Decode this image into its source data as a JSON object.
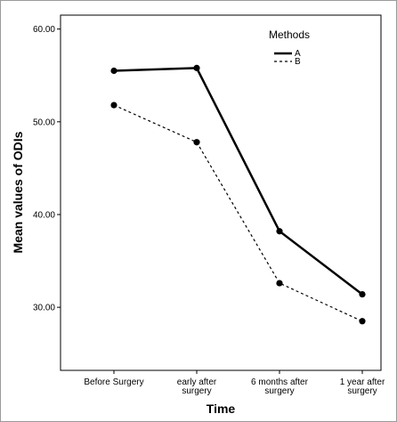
{
  "chart_data": {
    "type": "line",
    "categories": [
      [
        "Before Surgery"
      ],
      [
        "early after",
        "surgery"
      ],
      [
        "6 months after",
        "surgery"
      ],
      [
        "1 year after",
        "surgery"
      ]
    ],
    "series": [
      {
        "name": "A",
        "values": [
          55.5,
          55.8,
          38.2,
          31.4
        ],
        "style": "solid",
        "color": "#000000"
      },
      {
        "name": "B",
        "values": [
          51.8,
          47.8,
          32.6,
          28.5
        ],
        "style": "dashed",
        "color": "#000000"
      }
    ],
    "xlabel": "Time",
    "ylabel": "Mean values of ODIs",
    "ylim": [
      23.2,
      61.5
    ],
    "yticks": [
      30,
      40,
      50,
      60
    ],
    "ytick_labels": [
      "30.00",
      "40.00",
      "50.00",
      "60.00"
    ],
    "legend": {
      "title": "Methods",
      "placement": "top-right"
    },
    "grid": false
  }
}
